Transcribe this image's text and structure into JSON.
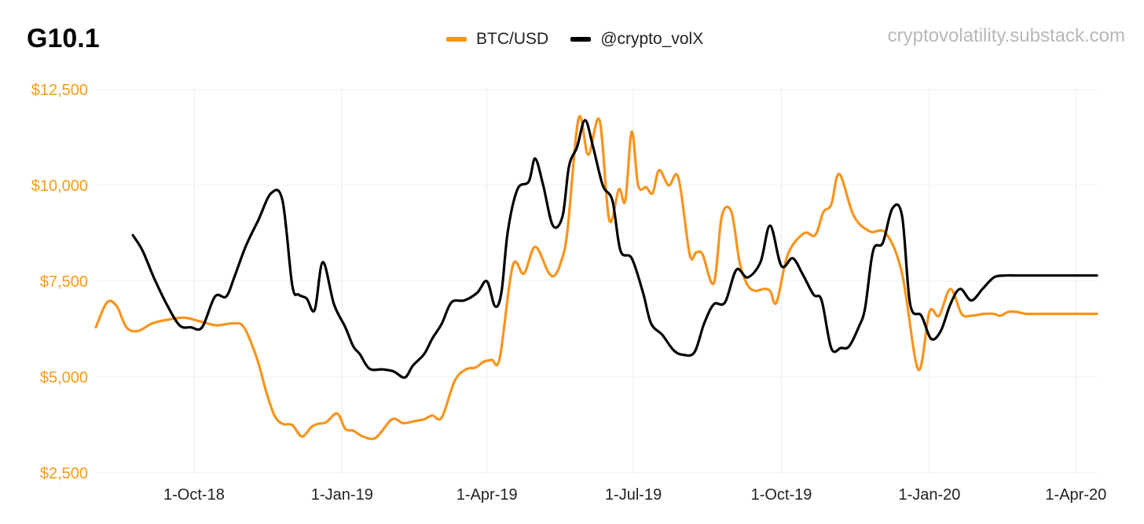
{
  "header": {
    "title": "G10.1",
    "watermark": "cryptovolatility.substack.com"
  },
  "colors": {
    "btc": "#f7941d",
    "volx": "#000000",
    "grid": "#ececec",
    "axis_text": "#f39c12"
  },
  "chart_data": {
    "type": "line",
    "title": "G10.1",
    "y_unit": "$",
    "ylim": [
      2500,
      12500
    ],
    "y_ticks": [
      2500,
      5000,
      7500,
      10000,
      12500
    ],
    "y_tick_labels": [
      "$2,500",
      "$5,000",
      "$7,500",
      "$10,000",
      "$12,500"
    ],
    "xlim": [
      "2018-08-01",
      "2020-04-15"
    ],
    "x_ticks": [
      "2018-10-01",
      "2019-01-01",
      "2019-04-01",
      "2019-07-01",
      "2019-10-01",
      "2020-01-01",
      "2020-04-01"
    ],
    "x_tick_labels": [
      "1-Oct-18",
      "1-Jan-19",
      "1-Apr-19",
      "1-Jul-19",
      "1-Oct-19",
      "1-Jan-20",
      "1-Apr-20"
    ],
    "grid": true,
    "legend_position": "top-center",
    "series": [
      {
        "name": "BTC/USD",
        "color": "#f7941d",
        "x": [
          "2018-08-01",
          "2018-08-08",
          "2018-08-14",
          "2018-08-20",
          "2018-08-27",
          "2018-09-05",
          "2018-09-15",
          "2018-09-25",
          "2018-10-05",
          "2018-10-15",
          "2018-10-25",
          "2018-11-01",
          "2018-11-09",
          "2018-11-15",
          "2018-11-20",
          "2018-11-25",
          "2018-12-01",
          "2018-12-07",
          "2018-12-13",
          "2018-12-17",
          "2018-12-22",
          "2018-12-29",
          "2019-01-03",
          "2019-01-08",
          "2019-01-14",
          "2019-01-22",
          "2019-02-01",
          "2019-02-08",
          "2019-02-15",
          "2019-02-21",
          "2019-02-26",
          "2019-03-04",
          "2019-03-12",
          "2019-03-19",
          "2019-03-25",
          "2019-03-30",
          "2019-04-04",
          "2019-04-09",
          "2019-04-17",
          "2019-04-24",
          "2019-05-01",
          "2019-05-09",
          "2019-05-13",
          "2019-05-17",
          "2019-05-21",
          "2019-05-28",
          "2019-06-03",
          "2019-06-10",
          "2019-06-16",
          "2019-06-22",
          "2019-06-26",
          "2019-06-30",
          "2019-07-04",
          "2019-07-09",
          "2019-07-13",
          "2019-07-17",
          "2019-07-23",
          "2019-07-29",
          "2019-08-05",
          "2019-08-09",
          "2019-08-13",
          "2019-08-20",
          "2019-08-25",
          "2019-08-31",
          "2019-09-05",
          "2019-09-10",
          "2019-09-15",
          "2019-09-20",
          "2019-09-24",
          "2019-09-28",
          "2019-10-05",
          "2019-10-15",
          "2019-10-22",
          "2019-10-27",
          "2019-11-01",
          "2019-11-06",
          "2019-11-15",
          "2019-11-25",
          "2019-12-05",
          "2019-12-15",
          "2019-12-25",
          "2020-01-01",
          "2020-01-07",
          "2020-01-14",
          "2020-01-21",
          "2020-01-27",
          "2020-02-04",
          "2020-02-10",
          "2020-02-14",
          "2020-02-19",
          "2020-02-24",
          "2020-03-01",
          "2020-03-07",
          "2020-03-10",
          "2020-03-13",
          "2020-03-18",
          "2020-03-25",
          "2020-03-30",
          "2020-04-04",
          "2020-04-09",
          "2020-04-14"
        ],
        "values": [
          6300,
          6950,
          6850,
          6300,
          6200,
          6400,
          6500,
          6550,
          6450,
          6350,
          6400,
          6300,
          5500,
          4600,
          4000,
          3780,
          3750,
          3450,
          3700,
          3780,
          3820,
          4050,
          3650,
          3600,
          3450,
          3420,
          3900,
          3800,
          3850,
          3900,
          4000,
          3950,
          4900,
          5200,
          5250,
          5400,
          5450,
          5500,
          7900,
          7700,
          8400,
          7750,
          7650,
          8000,
          8800,
          11750,
          10800,
          11700,
          9100,
          9900,
          9600,
          11400,
          10000,
          9950,
          9800,
          10400,
          10000,
          10200,
          8200,
          8250,
          8200,
          7450,
          9200,
          9300,
          8000,
          7400,
          7250,
          7300,
          7250,
          6950,
          8200,
          8750,
          8700,
          9300,
          9500,
          10300,
          9200,
          8800,
          8750,
          7700,
          5200,
          6700,
          6600,
          7300,
          6650,
          6600,
          6650,
          6650,
          6600,
          6700,
          6700,
          6650,
          6650,
          6650,
          6650,
          6650,
          6650,
          6650,
          6650,
          6650,
          6650
        ],
        "_note_ignore": ""
      },
      {
        "name": "@crypto_volX",
        "color": "#000000",
        "x": [],
        "values": []
      }
    ]
  }
}
